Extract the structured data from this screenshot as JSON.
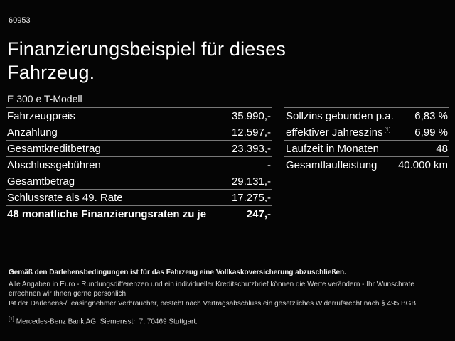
{
  "page": {
    "offer_number": "60953",
    "title_line1": "Finanzierungsbeispiel für dieses",
    "title_line2": "Fahrzeug.",
    "vehicle_model": "E 300 e T-Modell"
  },
  "financing_table": {
    "rows": [
      {
        "label": "Fahrzeugpreis",
        "value": "35.990,-"
      },
      {
        "label": "Anzahlung",
        "value": "12.597,-"
      },
      {
        "label": "Gesamtkreditbetrag",
        "value": "23.393,-"
      },
      {
        "label": "Abschlussgebühren",
        "value": "-"
      },
      {
        "label": "Gesamtbetrag",
        "value": "29.131,-"
      },
      {
        "label": "Schlussrate als 49. Rate",
        "value": "17.275,-"
      },
      {
        "label": "48 monatliche Finanzierungsraten zu je",
        "value": "247,-"
      }
    ]
  },
  "terms_table": {
    "rows": [
      {
        "label": "Sollzins gebunden p.a.",
        "value": "6,83 %"
      },
      {
        "label": "effektiver Jahreszins",
        "sup": "[1]",
        "value": "6,99 %"
      },
      {
        "label": "Laufzeit in Monaten",
        "value": "48"
      },
      {
        "label": "Gesamtlaufleistung",
        "value": "40.000 km"
      }
    ]
  },
  "footer": {
    "insurance_note": "Gemäß den Darlehensbedingungen ist für das Fahrzeug eine Vollkaskoversicherung abzuschließen.",
    "disclaimer_line1": "Alle Angaben in Euro - Rundungsdifferenzen und ein individueller Kreditschutzbrief können die Werte verändern - Ihr Wunschrate errechnen wir Ihnen gerne persönlich",
    "disclaimer_line2": "Ist der Darlehens-/Leasingnehmer Verbraucher, besteht nach Vertragsabschluss ein gesetzliches Widerrufsrecht nach § 495 BGB",
    "footnote_marker": "[1]",
    "footnote_text": "Mercedes-Benz Bank AG, Siemensstr. 7, 70469 Stuttgart."
  },
  "colors": {
    "background": "#050505",
    "text": "#ffffff",
    "divider": "#787878"
  }
}
